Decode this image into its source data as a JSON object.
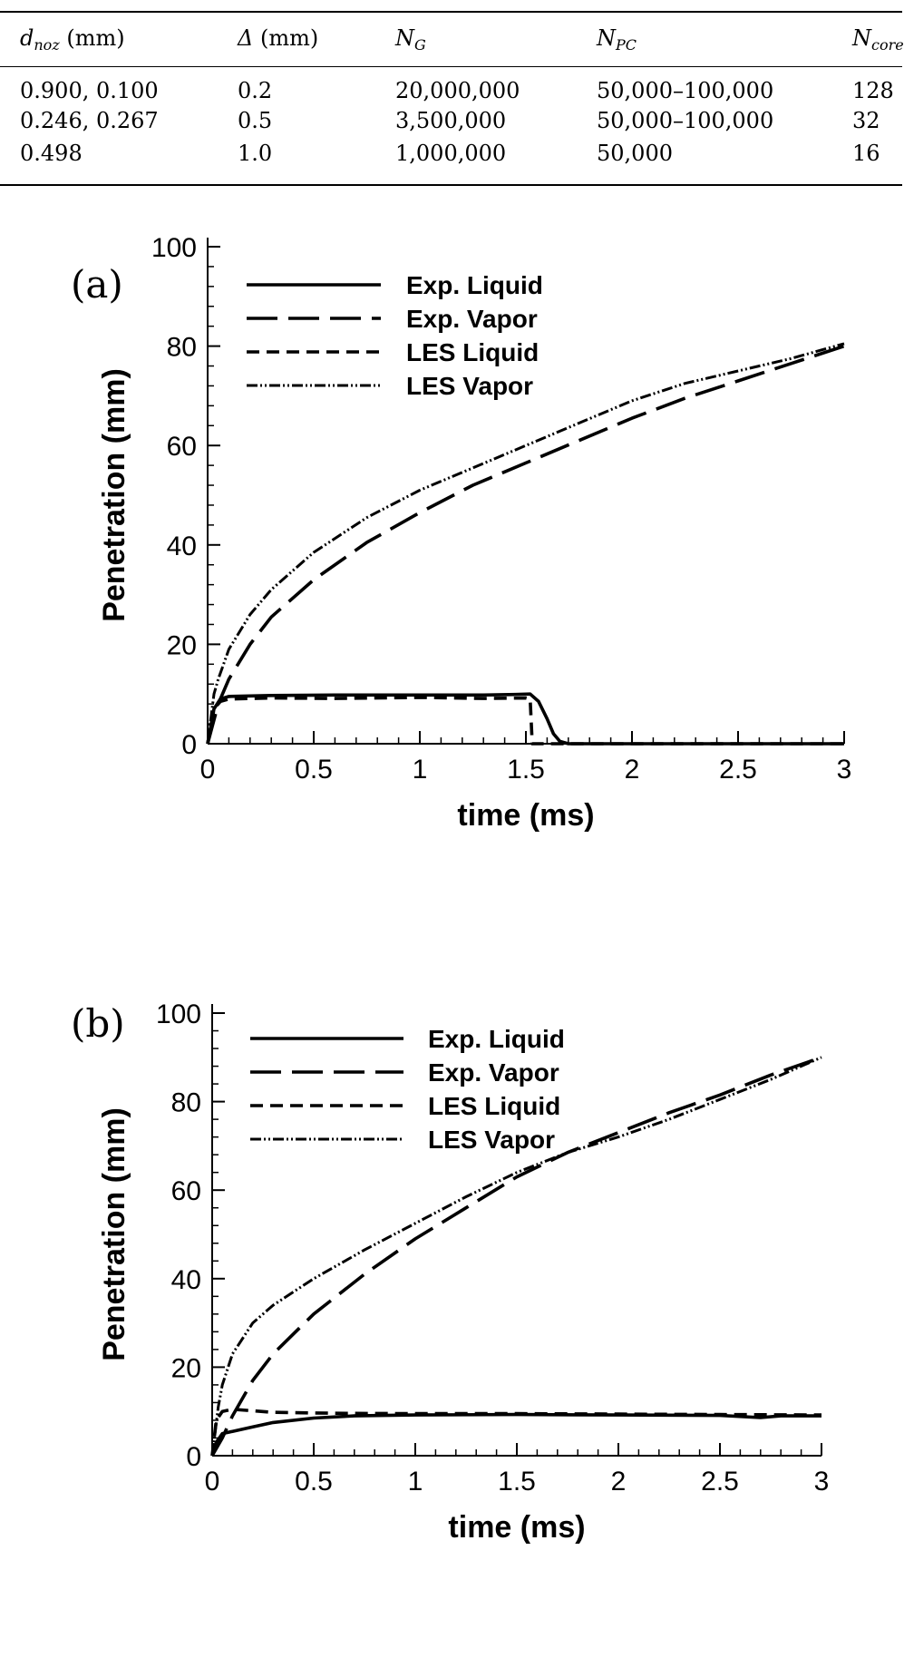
{
  "table": {
    "headers": [
      {
        "sym": "d",
        "sub": "noz",
        "unit": " (mm)"
      },
      {
        "sym": "Δ",
        "sub": "",
        "unit": " (mm)"
      },
      {
        "sym": "N",
        "sub": "G",
        "unit": ""
      },
      {
        "sym": "N",
        "sub": "PC",
        "unit": ""
      },
      {
        "sym": "N",
        "sub": "core",
        "unit": ""
      }
    ],
    "rows": [
      [
        "0.900, 0.100",
        "0.2",
        "20,000,000",
        "50,000–100,000",
        "128"
      ],
      [
        "0.246, 0.267",
        "0.5",
        "3,500,000",
        "50,000–100,000",
        "32"
      ],
      [
        "0.498",
        "1.0",
        "1,000,000",
        "50,000",
        "16"
      ]
    ]
  },
  "colors": {
    "ink": "#000000",
    "background": "#ffffff"
  },
  "chart_data": [
    {
      "type": "line",
      "panel_label": "(a)",
      "xlabel": "time (ms)",
      "ylabel": "Penetration (mm)",
      "xlim": [
        0,
        3
      ],
      "ylim": [
        0,
        100
      ],
      "xticks": [
        0,
        0.5,
        1,
        1.5,
        2,
        2.5,
        3
      ],
      "xtick_labels": [
        "0",
        "0.5",
        "1",
        "1.5",
        "2",
        "2.5",
        "3"
      ],
      "yticks": [
        0,
        20,
        40,
        60,
        80,
        100
      ],
      "ytick_labels": [
        "0",
        "20",
        "40",
        "60",
        "80",
        "100"
      ],
      "grid": false,
      "legend_position": "top-left",
      "series": [
        {
          "name": "Exp. Liquid",
          "style": "solid",
          "x": [
            0,
            0.03,
            0.06,
            0.1,
            0.3,
            0.6,
            1.0,
            1.3,
            1.45,
            1.52,
            1.56,
            1.6,
            1.63,
            1.66,
            1.7,
            3.0
          ],
          "y": [
            0,
            7,
            9,
            9.5,
            9.7,
            9.8,
            9.8,
            9.8,
            9.9,
            10,
            8.5,
            5,
            2,
            0.5,
            0,
            0
          ]
        },
        {
          "name": "Exp. Vapor",
          "style": "dashed-long",
          "x": [
            0,
            0.05,
            0.1,
            0.2,
            0.3,
            0.5,
            0.75,
            1.0,
            1.25,
            1.5,
            1.75,
            2.0,
            2.25,
            2.5,
            2.75,
            3.0
          ],
          "y": [
            0,
            8,
            13,
            20,
            25.5,
            33,
            40.5,
            46.5,
            52,
            56.5,
            61,
            65.5,
            69.5,
            73,
            76.5,
            80
          ]
        },
        {
          "name": "LES Liquid",
          "style": "dashed",
          "x": [
            0,
            0.03,
            0.06,
            0.1,
            0.3,
            0.6,
            1.0,
            1.3,
            1.5,
            1.52,
            1.53,
            3.0
          ],
          "y": [
            0,
            7,
            8.5,
            9,
            9.2,
            9.1,
            9.3,
            9.1,
            9.2,
            9.0,
            0,
            0
          ]
        },
        {
          "name": "LES Vapor",
          "style": "dash-dot-dot",
          "x": [
            0,
            0.03,
            0.05,
            0.1,
            0.2,
            0.3,
            0.5,
            0.75,
            1.0,
            1.25,
            1.5,
            1.75,
            2.0,
            2.25,
            2.5,
            2.75,
            3.0
          ],
          "y": [
            0,
            10,
            13,
            19,
            26,
            31,
            38.5,
            45.5,
            51,
            55.5,
            60,
            64.5,
            69,
            72.5,
            75,
            77.5,
            80.5
          ]
        }
      ]
    },
    {
      "type": "line",
      "panel_label": "(b)",
      "xlabel": "time (ms)",
      "ylabel": "Penetration (mm)",
      "xlim": [
        0,
        3
      ],
      "ylim": [
        0,
        100
      ],
      "xticks": [
        0,
        0.5,
        1,
        1.5,
        2,
        2.5,
        3
      ],
      "xtick_labels": [
        "0",
        "0.5",
        "1",
        "1.5",
        "2",
        "2.5",
        "3"
      ],
      "yticks": [
        0,
        20,
        40,
        60,
        80,
        100
      ],
      "ytick_labels": [
        "0",
        "20",
        "40",
        "60",
        "80",
        "100"
      ],
      "grid": false,
      "legend_position": "top-left",
      "series": [
        {
          "name": "Exp. Liquid",
          "style": "solid",
          "x": [
            0,
            0.02,
            0.05,
            0.1,
            0.2,
            0.3,
            0.5,
            0.7,
            1.0,
            1.5,
            2.0,
            2.5,
            2.7,
            2.8,
            3.0
          ],
          "y": [
            0,
            3,
            5,
            5.5,
            6.5,
            7.5,
            8.5,
            9,
            9.2,
            9.3,
            9.2,
            9.1,
            8.6,
            9.0,
            9.0
          ]
        },
        {
          "name": "Exp. Vapor",
          "style": "dashed-long",
          "x": [
            0,
            0.05,
            0.1,
            0.2,
            0.3,
            0.5,
            0.75,
            1.0,
            1.25,
            1.5,
            1.75,
            2.0,
            2.25,
            2.5,
            2.75,
            3.0
          ],
          "y": [
            0,
            4,
            9,
            17,
            23,
            32,
            41,
            49,
            56,
            63,
            68.5,
            73,
            77.5,
            81.5,
            86,
            90
          ]
        },
        {
          "name": "LES Liquid",
          "style": "dashed",
          "x": [
            0,
            0.02,
            0.05,
            0.1,
            0.3,
            0.6,
            1.0,
            1.5,
            2.0,
            2.5,
            3.0
          ],
          "y": [
            0,
            8,
            10,
            10.5,
            9.8,
            9.6,
            9.5,
            9.5,
            9.4,
            9.3,
            9.2
          ]
        },
        {
          "name": "LES Vapor",
          "style": "dash-dot-dot",
          "x": [
            0,
            0.03,
            0.05,
            0.1,
            0.2,
            0.3,
            0.5,
            0.75,
            1.0,
            1.25,
            1.5,
            1.75,
            2.0,
            2.25,
            2.5,
            2.75,
            3.0
          ],
          "y": [
            0,
            11,
            16,
            23,
            30,
            34,
            40,
            46.5,
            52.5,
            58.5,
            64,
            68.5,
            72,
            76,
            80.5,
            85,
            90
          ]
        }
      ]
    }
  ]
}
